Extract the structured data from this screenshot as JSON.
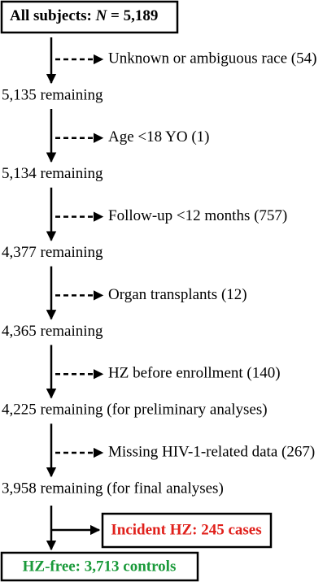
{
  "start": {
    "label": "All subjects:",
    "variable": "N",
    "value": "= 5,189"
  },
  "steps": [
    {
      "exclusion": "Unknown or ambiguous race (54)",
      "remaining": "5,135 remaining"
    },
    {
      "exclusion": "Age <18 YO (1)",
      "remaining": "5,134 remaining"
    },
    {
      "exclusion": "Follow-up <12 months (757)",
      "remaining": "4,377 remaining"
    },
    {
      "exclusion": "Organ transplants (12)",
      "remaining": "4,365 remaining"
    },
    {
      "exclusion": "HZ before enrollment (140)",
      "remaining": "4,225 remaining (for preliminary analyses)"
    },
    {
      "exclusion": "Missing HIV-1-related data (267)",
      "remaining": "3,958 remaining (for final analyses)"
    }
  ],
  "cases": "Incident HZ: 245 cases",
  "controls": "HZ-free: 3,713 controls"
}
